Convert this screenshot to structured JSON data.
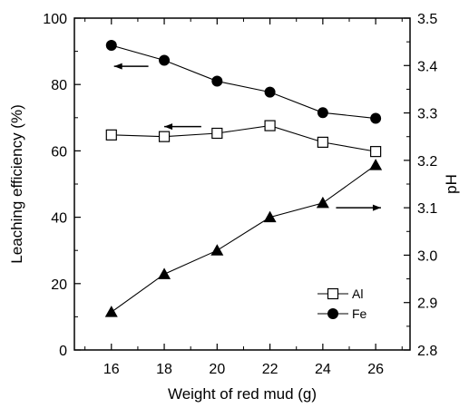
{
  "chart_data": {
    "type": "line",
    "xlabel": "Weight of red mud (g)",
    "ylabel": "Leaching efficiency (%)",
    "y2label": "pH",
    "x": [
      16,
      18,
      20,
      22,
      24,
      26
    ],
    "xlim": [
      14.6,
      27.3
    ],
    "xticks": [
      "16",
      "18",
      "20",
      "22",
      "24",
      "26"
    ],
    "ylim": [
      0,
      100
    ],
    "yticks": [
      "0",
      "20",
      "40",
      "60",
      "80",
      "100"
    ],
    "y2lim": [
      2.8,
      3.5
    ],
    "y2ticks": [
      "2.8",
      "2.9",
      "3.0",
      "3.1",
      "3.2",
      "3.3",
      "3.4",
      "3.5"
    ],
    "grid": false,
    "legend_position": "bottom-right",
    "series": [
      {
        "name": "Al",
        "axis": "left",
        "marker": "open-square",
        "values": [
          64.8,
          64.3,
          65.3,
          67.6,
          62.6,
          59.8
        ]
      },
      {
        "name": "Fe",
        "axis": "left",
        "marker": "filled-circle",
        "values": [
          91.8,
          87.3,
          81.0,
          77.7,
          71.5,
          69.8
        ]
      },
      {
        "name": "",
        "axis": "right",
        "marker": "filled-triangle",
        "values": [
          2.88,
          2.96,
          3.01,
          3.08,
          3.11,
          3.19
        ]
      }
    ],
    "arrows": [
      {
        "series": "Fe",
        "direction": "left",
        "x_from": 17.4,
        "x_to": 16.1,
        "y": 85.5
      },
      {
        "series": "Al",
        "direction": "left",
        "x_from": 19.4,
        "x_to": 18.0,
        "y": 67.3
      },
      {
        "series": "pH",
        "direction": "right",
        "x_from": 24.5,
        "x_to": 26.2,
        "y": 3.1
      }
    ]
  }
}
